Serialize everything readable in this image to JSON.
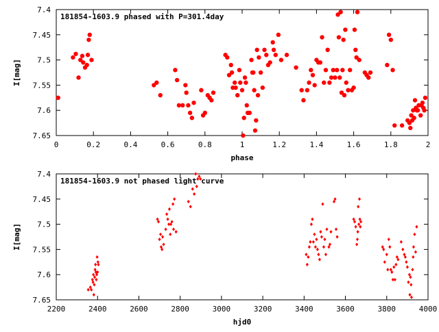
{
  "chart_data": [
    {
      "type": "scatter",
      "title": "181854-1603.9 phased with P=301.4day",
      "xlabel": "phase",
      "ylabel": "I[mag]",
      "xlim": [
        0,
        2
      ],
      "ylim": [
        7.4,
        7.65
      ],
      "y_inverted": true,
      "xticks": [
        "0",
        "0.2",
        "0.4",
        "0.6",
        "0.8",
        "1",
        "1.2",
        "1.4",
        "1.6",
        "1.8",
        "2"
      ],
      "yticks": [
        "7.4",
        "7.45",
        "7.5",
        "7.55",
        "7.6",
        "7.65"
      ],
      "marker": "filled-circle-large",
      "color": "#ff0000",
      "grid": false,
      "points": [
        [
          0.01,
          7.575
        ],
        [
          0.09,
          7.495
        ],
        [
          0.105,
          7.488
        ],
        [
          0.12,
          7.535
        ],
        [
          0.13,
          7.5
        ],
        [
          0.14,
          7.492
        ],
        [
          0.145,
          7.505
        ],
        [
          0.155,
          7.515
        ],
        [
          0.165,
          7.51
        ],
        [
          0.17,
          7.49
        ],
        [
          0.175,
          7.46
        ],
        [
          0.18,
          7.45
        ],
        [
          0.19,
          7.5
        ],
        [
          0.525,
          7.55
        ],
        [
          0.54,
          7.545
        ],
        [
          0.56,
          7.57
        ],
        [
          0.64,
          7.52
        ],
        [
          0.65,
          7.54
        ],
        [
          0.66,
          7.59
        ],
        [
          0.68,
          7.59
        ],
        [
          0.695,
          7.55
        ],
        [
          0.7,
          7.565
        ],
        [
          0.71,
          7.59
        ],
        [
          0.72,
          7.605
        ],
        [
          0.73,
          7.615
        ],
        [
          0.74,
          7.585
        ],
        [
          0.78,
          7.56
        ],
        [
          0.79,
          7.61
        ],
        [
          0.8,
          7.605
        ],
        [
          0.815,
          7.57
        ],
        [
          0.825,
          7.575
        ],
        [
          0.835,
          7.58
        ],
        [
          0.845,
          7.565
        ],
        [
          0.91,
          7.49
        ],
        [
          0.92,
          7.495
        ],
        [
          0.93,
          7.53
        ],
        [
          0.94,
          7.51
        ],
        [
          0.945,
          7.525
        ],
        [
          0.95,
          7.555
        ],
        [
          0.96,
          7.545
        ],
        [
          0.965,
          7.555
        ],
        [
          0.975,
          7.57
        ],
        [
          0.985,
          7.52
        ],
        [
          0.99,
          7.545
        ],
        [
          1.0,
          7.56
        ],
        [
          1.005,
          7.65
        ],
        [
          1.01,
          7.615
        ],
        [
          1.015,
          7.535
        ],
        [
          1.02,
          7.545
        ],
        [
          1.025,
          7.59
        ],
        [
          1.03,
          7.605
        ],
        [
          1.04,
          7.605
        ],
        [
          1.05,
          7.5
        ],
        [
          1.055,
          7.525
        ],
        [
          1.06,
          7.525
        ],
        [
          1.065,
          7.56
        ],
        [
          1.07,
          7.64
        ],
        [
          1.075,
          7.62
        ],
        [
          1.08,
          7.48
        ],
        [
          1.085,
          7.57
        ],
        [
          1.09,
          7.495
        ],
        [
          1.1,
          7.525
        ],
        [
          1.11,
          7.555
        ],
        [
          1.12,
          7.48
        ],
        [
          1.13,
          7.49
        ],
        [
          1.14,
          7.51
        ],
        [
          1.15,
          7.505
        ],
        [
          1.165,
          7.465
        ],
        [
          1.17,
          7.48
        ],
        [
          1.18,
          7.49
        ],
        [
          1.195,
          7.45
        ],
        [
          1.21,
          7.5
        ],
        [
          1.24,
          7.49
        ],
        [
          1.29,
          7.515
        ],
        [
          1.32,
          7.56
        ],
        [
          1.33,
          7.58
        ],
        [
          1.35,
          7.56
        ],
        [
          1.36,
          7.545
        ],
        [
          1.37,
          7.52
        ],
        [
          1.38,
          7.53
        ],
        [
          1.39,
          7.55
        ],
        [
          1.4,
          7.5
        ],
        [
          1.41,
          7.505
        ],
        [
          1.42,
          7.505
        ],
        [
          1.43,
          7.455
        ],
        [
          1.44,
          7.545
        ],
        [
          1.45,
          7.52
        ],
        [
          1.46,
          7.48
        ],
        [
          1.47,
          7.545
        ],
        [
          1.48,
          7.535
        ],
        [
          1.49,
          7.52
        ],
        [
          1.5,
          7.535
        ],
        [
          1.51,
          7.52
        ],
        [
          1.515,
          7.41
        ],
        [
          1.52,
          7.455
        ],
        [
          1.525,
          7.535
        ],
        [
          1.53,
          7.405
        ],
        [
          1.535,
          7.565
        ],
        [
          1.54,
          7.52
        ],
        [
          1.545,
          7.46
        ],
        [
          1.55,
          7.57
        ],
        [
          1.555,
          7.44
        ],
        [
          1.56,
          7.545
        ],
        [
          1.57,
          7.56
        ],
        [
          1.58,
          7.52
        ],
        [
          1.59,
          7.56
        ],
        [
          1.6,
          7.555
        ],
        [
          1.605,
          7.44
        ],
        [
          1.61,
          7.48
        ],
        [
          1.615,
          7.495
        ],
        [
          1.62,
          7.405
        ],
        [
          1.63,
          7.5
        ],
        [
          1.66,
          7.525
        ],
        [
          1.67,
          7.53
        ],
        [
          1.68,
          7.535
        ],
        [
          1.69,
          7.525
        ],
        [
          1.78,
          7.51
        ],
        [
          1.79,
          7.45
        ],
        [
          1.8,
          7.46
        ],
        [
          1.81,
          7.52
        ],
        [
          1.82,
          7.63
        ],
        [
          1.86,
          7.63
        ],
        [
          1.89,
          7.62
        ],
        [
          1.9,
          7.625
        ],
        [
          1.905,
          7.635
        ],
        [
          1.91,
          7.61
        ],
        [
          1.915,
          7.62
        ],
        [
          1.92,
          7.6
        ],
        [
          1.925,
          7.615
        ],
        [
          1.93,
          7.58
        ],
        [
          1.935,
          7.595
        ],
        [
          1.94,
          7.6
        ],
        [
          1.945,
          7.6
        ],
        [
          1.95,
          7.59
        ],
        [
          1.96,
          7.61
        ],
        [
          1.965,
          7.59
        ],
        [
          1.97,
          7.585
        ],
        [
          1.975,
          7.595
        ],
        [
          1.98,
          7.6
        ],
        [
          1.985,
          7.575
        ]
      ]
    },
    {
      "type": "scatter",
      "title": "181854-1603.9 not phased light curve",
      "xlabel": "hjd0",
      "ylabel": "I[mag]",
      "xlim": [
        2200,
        4000
      ],
      "ylim": [
        7.4,
        7.65
      ],
      "y_inverted": true,
      "xticks": [
        "2200",
        "2400",
        "2600",
        "2800",
        "3000",
        "3200",
        "3400",
        "3600",
        "3800",
        "4000"
      ],
      "yticks": [
        "7.4",
        "7.45",
        "7.5",
        "7.55",
        "7.6",
        "7.65"
      ],
      "marker": "filled-diamond-small",
      "color": "#ff0000",
      "grid": false,
      "points": [
        [
          2355,
          7.63
        ],
        [
          2365,
          7.625
        ],
        [
          2370,
          7.63
        ],
        [
          2375,
          7.61
        ],
        [
          2378,
          7.615
        ],
        [
          2380,
          7.6
        ],
        [
          2382,
          7.64
        ],
        [
          2384,
          7.62
        ],
        [
          2386,
          7.605
        ],
        [
          2388,
          7.59
        ],
        [
          2390,
          7.58
        ],
        [
          2392,
          7.595
        ],
        [
          2394,
          7.61
        ],
        [
          2396,
          7.6
        ],
        [
          2398,
          7.565
        ],
        [
          2400,
          7.595
        ],
        [
          2402,
          7.575
        ],
        [
          2404,
          7.58
        ],
        [
          2690,
          7.49
        ],
        [
          2695,
          7.495
        ],
        [
          2700,
          7.53
        ],
        [
          2705,
          7.52
        ],
        [
          2708,
          7.545
        ],
        [
          2712,
          7.55
        ],
        [
          2715,
          7.525
        ],
        [
          2720,
          7.54
        ],
        [
          2730,
          7.51
        ],
        [
          2735,
          7.48
        ],
        [
          2740,
          7.49
        ],
        [
          2745,
          7.5
        ],
        [
          2748,
          7.47
        ],
        [
          2752,
          7.52
        ],
        [
          2755,
          7.5
        ],
        [
          2760,
          7.495
        ],
        [
          2765,
          7.46
        ],
        [
          2768,
          7.51
        ],
        [
          2772,
          7.45
        ],
        [
          2780,
          7.515
        ],
        [
          2840,
          7.455
        ],
        [
          2850,
          7.465
        ],
        [
          2860,
          7.43
        ],
        [
          2868,
          7.44
        ],
        [
          2875,
          7.4
        ],
        [
          2880,
          7.425
        ],
        [
          2885,
          7.41
        ],
        [
          2892,
          7.405
        ],
        [
          2898,
          7.41
        ],
        [
          3410,
          7.56
        ],
        [
          3415,
          7.58
        ],
        [
          3420,
          7.565
        ],
        [
          3425,
          7.545
        ],
        [
          3430,
          7.535
        ],
        [
          3435,
          7.5
        ],
        [
          3440,
          7.49
        ],
        [
          3445,
          7.535
        ],
        [
          3450,
          7.52
        ],
        [
          3455,
          7.545
        ],
        [
          3460,
          7.53
        ],
        [
          3465,
          7.55
        ],
        [
          3470,
          7.56
        ],
        [
          3475,
          7.57
        ],
        [
          3480,
          7.515
        ],
        [
          3485,
          7.525
        ],
        [
          3490,
          7.46
        ],
        [
          3495,
          7.545
        ],
        [
          3500,
          7.53
        ],
        [
          3505,
          7.56
        ],
        [
          3510,
          7.51
        ],
        [
          3520,
          7.545
        ],
        [
          3525,
          7.54
        ],
        [
          3530,
          7.515
        ],
        [
          3545,
          7.455
        ],
        [
          3550,
          7.45
        ],
        [
          3555,
          7.51
        ],
        [
          3560,
          7.525
        ],
        [
          3640,
          7.49
        ],
        [
          3645,
          7.495
        ],
        [
          3650,
          7.505
        ],
        [
          3655,
          7.54
        ],
        [
          3658,
          7.53
        ],
        [
          3660,
          7.515
        ],
        [
          3662,
          7.465
        ],
        [
          3665,
          7.5
        ],
        [
          3668,
          7.45
        ],
        [
          3670,
          7.49
        ],
        [
          3672,
          7.505
        ],
        [
          3675,
          7.495
        ],
        [
          3780,
          7.545
        ],
        [
          3785,
          7.55
        ],
        [
          3790,
          7.575
        ],
        [
          3800,
          7.56
        ],
        [
          3805,
          7.59
        ],
        [
          3810,
          7.53
        ],
        [
          3815,
          7.545
        ],
        [
          3820,
          7.59
        ],
        [
          3825,
          7.595
        ],
        [
          3830,
          7.61
        ],
        [
          3835,
          7.585
        ],
        [
          3840,
          7.61
        ],
        [
          3845,
          7.58
        ],
        [
          3850,
          7.565
        ],
        [
          3855,
          7.57
        ],
        [
          3870,
          7.535
        ],
        [
          3878,
          7.55
        ],
        [
          3885,
          7.56
        ],
        [
          3890,
          7.565
        ],
        [
          3895,
          7.575
        ],
        [
          3900,
          7.585
        ],
        [
          3905,
          7.615
        ],
        [
          3910,
          7.6
        ],
        [
          3912,
          7.64
        ],
        [
          3915,
          7.605
        ],
        [
          3918,
          7.62
        ],
        [
          3920,
          7.645
        ],
        [
          3925,
          7.59
        ],
        [
          3928,
          7.565
        ],
        [
          3930,
          7.545
        ],
        [
          3935,
          7.52
        ],
        [
          3940,
          7.555
        ],
        [
          3945,
          7.505
        ]
      ]
    }
  ]
}
